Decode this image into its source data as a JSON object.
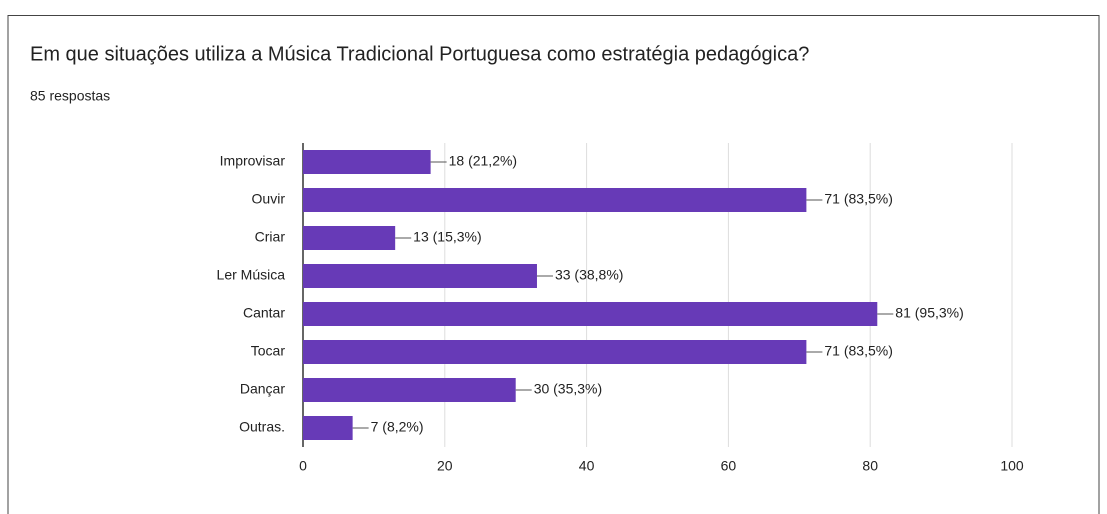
{
  "chart_data": {
    "type": "bar",
    "orientation": "horizontal",
    "title": "Em que situações utiliza a Música Tradicional Portuguesa como estratégia pedagógica?",
    "subtitle": "85 respostas",
    "categories": [
      "Improvisar",
      "Ouvir",
      "Criar",
      "Ler Música",
      "Cantar",
      "Tocar",
      "Dançar",
      "Outras."
    ],
    "values": [
      18,
      71,
      13,
      33,
      81,
      71,
      30,
      7
    ],
    "value_labels": [
      "18 (21,2%)",
      "71 (83,5%)",
      "13 (15,3%)",
      "33 (38,8%)",
      "81 (95,3%)",
      "71 (83,5%)",
      "30 (35,3%)",
      "7 (8,2%)"
    ],
    "color": "#673ab7",
    "xlim": [
      0,
      100
    ],
    "xticks": [
      0,
      20,
      40,
      60,
      80,
      100
    ],
    "grid": true
  }
}
